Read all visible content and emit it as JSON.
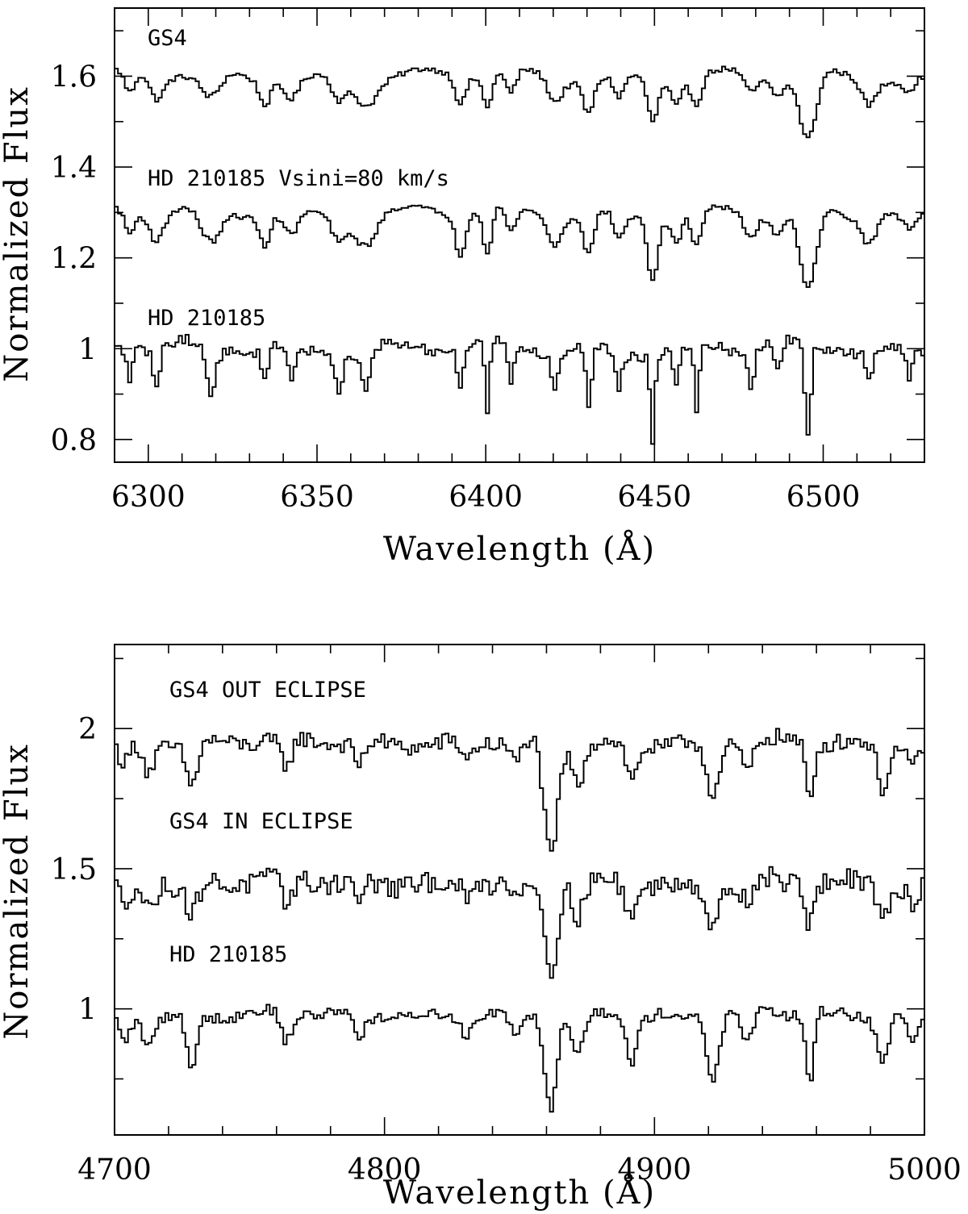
{
  "chart_data": [
    {
      "type": "line",
      "panel": "top",
      "xlabel": "Wavelength (Å)",
      "ylabel": "Normalized Flux",
      "xlim": [
        6290,
        6530
      ],
      "ylim": [
        0.75,
        1.75
      ],
      "xticks_major": [
        6300,
        6350,
        6400,
        6450,
        6500
      ],
      "xtick_labels": [
        "6300",
        "6350",
        "6400",
        "6450",
        "6500"
      ],
      "xticks_minor_step": 10,
      "yticks_major": [
        0.8,
        1.0,
        1.2,
        1.4,
        1.6
      ],
      "ytick_labels": [
        "0.8",
        "1",
        "1.2",
        "1.4",
        "1.6"
      ],
      "yticks_minor_step": 0.1,
      "series": [
        {
          "name": "GS4",
          "offset": 1.6,
          "noise": 0.006,
          "lines": [
            [
              6294,
              0.05,
              1.5
            ],
            [
              6302,
              0.05,
              2
            ],
            [
              6318,
              0.06,
              3
            ],
            [
              6334,
              0.05,
              1.5
            ],
            [
              6342,
              0.04,
              2
            ],
            [
              6356,
              0.05,
              2
            ],
            [
              6364,
              0.05,
              3
            ],
            [
              6392,
              0.06,
              1.5
            ],
            [
              6400,
              0.07,
              1.3
            ],
            [
              6407,
              0.05,
              1.5
            ],
            [
              6420,
              0.05,
              2
            ],
            [
              6430,
              0.07,
              1.5
            ],
            [
              6439,
              0.05,
              1.5
            ],
            [
              6449,
              0.09,
              1.5
            ],
            [
              6456,
              0.05,
              1.5
            ],
            [
              6462,
              0.06,
              1.5
            ],
            [
              6478,
              0.04,
              2
            ],
            [
              6486,
              0.04,
              2
            ],
            [
              6495,
              0.15,
              2.5
            ],
            [
              6513,
              0.05,
              2
            ],
            [
              6525,
              0.03,
              2
            ]
          ]
        },
        {
          "name": "HD 210185 Vsini=80 km/s",
          "offset": 1.3,
          "noise": 0.006,
          "lines": [
            [
              6294,
              0.05,
              1.5
            ],
            [
              6302,
              0.06,
              2
            ],
            [
              6318,
              0.08,
              3
            ],
            [
              6334,
              0.06,
              1.5
            ],
            [
              6342,
              0.05,
              2
            ],
            [
              6356,
              0.05,
              2
            ],
            [
              6364,
              0.06,
              3
            ],
            [
              6392,
              0.09,
              1.5
            ],
            [
              6400,
              0.1,
              1.3
            ],
            [
              6407,
              0.06,
              1.5
            ],
            [
              6420,
              0.06,
              2
            ],
            [
              6430,
              0.09,
              1.5
            ],
            [
              6439,
              0.06,
              1.5
            ],
            [
              6449,
              0.13,
              1.5
            ],
            [
              6456,
              0.06,
              1.5
            ],
            [
              6462,
              0.08,
              1.5
            ],
            [
              6478,
              0.05,
              2
            ],
            [
              6486,
              0.05,
              2
            ],
            [
              6495,
              0.18,
              2.5
            ],
            [
              6513,
              0.06,
              2
            ],
            [
              6525,
              0.04,
              2
            ]
          ]
        },
        {
          "name": "HD 210185",
          "offset": 1.0,
          "noise": 0.012,
          "lines": [
            [
              6294,
              0.06,
              0.8
            ],
            [
              6302,
              0.09,
              1
            ],
            [
              6318,
              0.1,
              1.5
            ],
            [
              6334,
              0.07,
              0.8
            ],
            [
              6342,
              0.07,
              1
            ],
            [
              6356,
              0.07,
              1
            ],
            [
              6364,
              0.08,
              1.5
            ],
            [
              6392,
              0.1,
              0.8
            ],
            [
              6400,
              0.15,
              0.7
            ],
            [
              6407,
              0.08,
              0.8
            ],
            [
              6420,
              0.09,
              1
            ],
            [
              6430,
              0.14,
              0.8
            ],
            [
              6439,
              0.08,
              0.8
            ],
            [
              6449,
              0.19,
              0.7
            ],
            [
              6456,
              0.08,
              0.8
            ],
            [
              6462,
              0.14,
              0.7
            ],
            [
              6478,
              0.08,
              1
            ],
            [
              6486,
              0.07,
              1
            ],
            [
              6495,
              0.21,
              0.9
            ],
            [
              6513,
              0.07,
              1
            ],
            [
              6525,
              0.06,
              1
            ]
          ]
        }
      ]
    },
    {
      "type": "line",
      "panel": "bottom",
      "xlabel": "Wavelength (Å)",
      "ylabel": "Normalized Flux",
      "xlim": [
        4700,
        5000
      ],
      "ylim": [
        0.55,
        2.3
      ],
      "xticks_major": [
        4700,
        4800,
        4900,
        5000
      ],
      "xtick_labels": [
        "4700",
        "4800",
        "4900",
        "5000"
      ],
      "xticks_minor_step": 20,
      "yticks_major": [
        1.0,
        1.5,
        2.0
      ],
      "ytick_labels": [
        "1",
        "1.5",
        "2"
      ],
      "yticks_minor_step": 0.25,
      "series": [
        {
          "name": "GS4 OUT ECLIPSE",
          "offset": 1.95,
          "noise": 0.03,
          "lines": [
            [
              4703,
              0.08,
              2
            ],
            [
              4712,
              0.1,
              2
            ],
            [
              4728,
              0.15,
              2
            ],
            [
              4763,
              0.1,
              2
            ],
            [
              4790,
              0.08,
              2
            ],
            [
              4830,
              0.06,
              2
            ],
            [
              4848,
              0.08,
              2
            ],
            [
              4861,
              0.42,
              2.5
            ],
            [
              4871,
              0.15,
              2
            ],
            [
              4891,
              0.13,
              2
            ],
            [
              4921,
              0.18,
              2.5
            ],
            [
              4934,
              0.1,
              2
            ],
            [
              4957,
              0.2,
              1.5
            ],
            [
              4984,
              0.15,
              2
            ],
            [
              4995,
              0.08,
              2
            ]
          ]
        },
        {
          "name": "GS4 IN ECLIPSE",
          "offset": 1.45,
          "noise": 0.04,
          "lines": [
            [
              4703,
              0.07,
              2
            ],
            [
              4712,
              0.08,
              2
            ],
            [
              4728,
              0.12,
              2
            ],
            [
              4763,
              0.08,
              2
            ],
            [
              4790,
              0.06,
              2
            ],
            [
              4830,
              0.05,
              2
            ],
            [
              4848,
              0.06,
              2
            ],
            [
              4861,
              0.3,
              2.5
            ],
            [
              4871,
              0.12,
              2
            ],
            [
              4891,
              0.1,
              2
            ],
            [
              4921,
              0.15,
              2.5
            ],
            [
              4934,
              0.08,
              2
            ],
            [
              4957,
              0.15,
              1.5
            ],
            [
              4984,
              0.12,
              2
            ],
            [
              4995,
              0.07,
              2
            ]
          ]
        },
        {
          "name": "HD 210185",
          "offset": 0.98,
          "noise": 0.02,
          "lines": [
            [
              4703,
              0.09,
              2
            ],
            [
              4712,
              0.1,
              2
            ],
            [
              4728,
              0.18,
              2
            ],
            [
              4763,
              0.1,
              2
            ],
            [
              4790,
              0.08,
              2
            ],
            [
              4830,
              0.06,
              2
            ],
            [
              4848,
              0.09,
              2
            ],
            [
              4861,
              0.33,
              2.2
            ],
            [
              4871,
              0.15,
              2
            ],
            [
              4891,
              0.15,
              2
            ],
            [
              4921,
              0.22,
              2.2
            ],
            [
              4934,
              0.12,
              2
            ],
            [
              4957,
              0.25,
              1.5
            ],
            [
              4984,
              0.15,
              2
            ],
            [
              4995,
              0.1,
              2
            ]
          ]
        }
      ]
    }
  ]
}
